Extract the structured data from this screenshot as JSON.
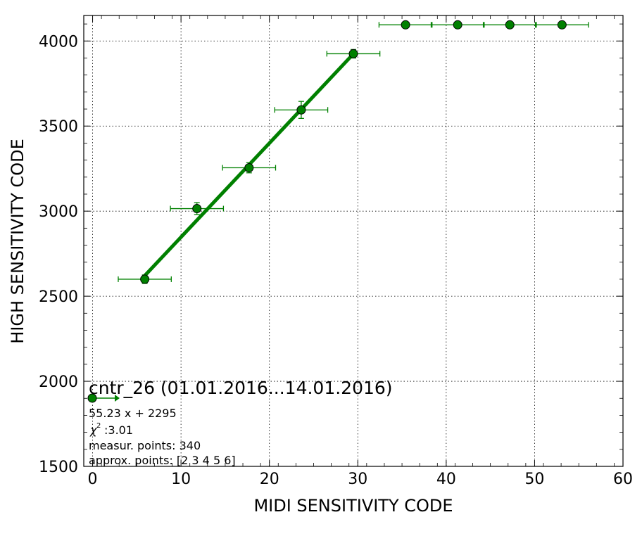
{
  "chart_data": {
    "type": "scatter",
    "title": "cntr_26 (01.01.2016...14.01.2016)",
    "xlabel": "MIDI SENSITIVITY CODE",
    "ylabel": "HIGH SENSITIVITY CODE",
    "xlim": [
      -1,
      60
    ],
    "ylim": [
      1500,
      4150
    ],
    "xticks": [
      0,
      10,
      20,
      30,
      40,
      50,
      60
    ],
    "yticks": [
      1500,
      2000,
      2500,
      3000,
      3500,
      4000
    ],
    "grid": true,
    "marker_color": "#008000",
    "line_color": "#008000",
    "points": [
      {
        "x": 5.9,
        "y": 2600,
        "xerr": 3.0,
        "yerr": 25
      },
      {
        "x": 11.8,
        "y": 3015,
        "xerr": 3.0,
        "yerr": 35
      },
      {
        "x": 17.7,
        "y": 3255,
        "xerr": 3.0,
        "yerr": 30
      },
      {
        "x": 23.6,
        "y": 3595,
        "xerr": 3.0,
        "yerr": 50
      },
      {
        "x": 29.5,
        "y": 3925,
        "xerr": 3.0,
        "yerr": 25
      },
      {
        "x": 35.4,
        "y": 4095,
        "xerr": 3.0,
        "yerr": 0
      },
      {
        "x": 41.3,
        "y": 4095,
        "xerr": 3.0,
        "yerr": 0
      },
      {
        "x": 47.2,
        "y": 4095,
        "xerr": 3.0,
        "yerr": 0
      },
      {
        "x": 53.1,
        "y": 4095,
        "xerr": 3.0,
        "yerr": 0
      }
    ],
    "fit": {
      "slope": 55.23,
      "intercept": 2295,
      "x_range": [
        5.9,
        29.5
      ]
    },
    "info_lines": [
      "55.23 x + 2295",
      ":3.01",
      "measur. points: 340",
      "approx. points: [2 3 4 5 6]"
    ],
    "chi_symbol": "χ",
    "chi_power": "2"
  }
}
